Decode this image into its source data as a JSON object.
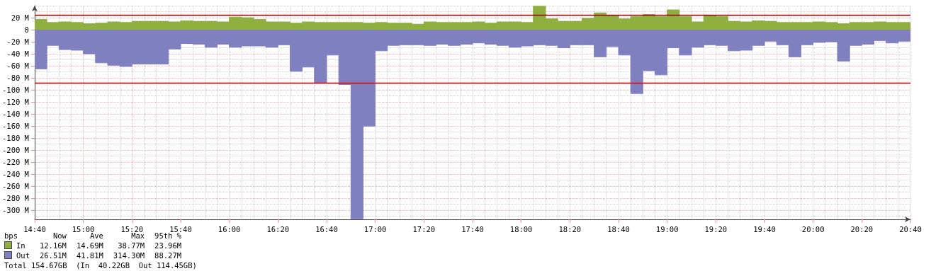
{
  "chart_data": {
    "type": "area",
    "x": [
      14.6667,
      14.75,
      14.75,
      14.8333,
      14.8333,
      14.9167,
      14.9167,
      15,
      15,
      15.0833,
      15.0833,
      15.1667,
      15.1667,
      15.25,
      15.25,
      15.3333,
      15.3333,
      15.4167,
      15.4167,
      15.5,
      15.5,
      15.5833,
      15.5833,
      15.6667,
      15.6667,
      15.75,
      15.75,
      15.8333,
      15.8333,
      15.9167,
      15.9167,
      16,
      16,
      16.0833,
      16.0833,
      16.1667,
      16.1667,
      16.25,
      16.25,
      16.3333,
      16.3333,
      16.4167,
      16.4167,
      16.5,
      16.5,
      16.5833,
      16.5833,
      16.6667,
      16.6667,
      16.75,
      16.75,
      16.8333,
      16.8333,
      16.9167,
      16.9167,
      17,
      17,
      17.0833,
      17.0833,
      17.1667,
      17.1667,
      17.25,
      17.25,
      17.3333,
      17.3333,
      17.4167,
      17.4167,
      17.5,
      17.5,
      17.5833,
      17.5833,
      17.6667,
      17.6667,
      17.75,
      17.75,
      17.8333,
      17.8333,
      17.9167,
      17.9167,
      18,
      18,
      18.0833,
      18.0833,
      18.1667,
      18.1667,
      18.25,
      18.25,
      18.3333,
      18.3333,
      18.4167,
      18.4167,
      18.5,
      18.5,
      18.5833,
      18.5833,
      18.6667,
      18.6667,
      18.75,
      18.75,
      18.8333,
      18.8333,
      18.9167,
      18.9167,
      19,
      19,
      19.0833,
      19.0833,
      19.1667,
      19.1667,
      19.25,
      19.25,
      19.3333,
      19.3333,
      19.4167,
      19.4167,
      19.5,
      19.5,
      19.5833,
      19.5833,
      19.6667,
      19.6667,
      19.75,
      19.75,
      19.8333,
      19.8333,
      19.9167,
      19.9167,
      20,
      20,
      20.0833,
      20.0833,
      20.1667,
      20.1667,
      20.25,
      20.25,
      20.3333,
      20.3333,
      20.4167,
      20.4167,
      20.5,
      20.5,
      20.5833,
      20.5833,
      20.6667
    ],
    "series": [
      {
        "name": "In",
        "color": "#8fb040",
        "values": [
          17,
          17,
          12,
          12,
          13,
          13,
          12,
          12,
          10,
          10,
          11,
          11,
          13,
          13,
          12,
          12,
          14,
          14,
          14,
          14,
          14,
          14,
          13,
          13,
          15,
          15,
          14,
          14,
          14,
          14,
          13,
          13,
          21,
          21,
          20,
          20,
          17,
          17,
          13,
          13,
          13,
          13,
          11,
          11,
          13,
          13,
          12,
          12,
          12,
          12,
          12,
          12,
          12,
          12,
          11,
          11,
          12,
          12,
          11,
          11,
          11,
          11,
          9,
          9,
          13,
          13,
          12,
          12,
          12,
          12,
          12,
          12,
          13,
          13,
          11,
          11,
          13,
          13,
          13,
          13,
          12,
          12,
          39,
          39,
          18,
          18,
          14,
          14,
          14,
          14,
          19,
          19,
          28,
          28,
          24,
          24,
          18,
          18,
          22,
          22,
          25,
          25,
          22,
          22,
          33,
          33,
          22,
          22,
          13,
          13,
          23,
          23,
          22,
          22,
          14,
          14,
          13,
          13,
          15,
          15,
          14,
          14,
          12,
          12,
          12,
          12,
          12,
          12,
          13,
          13,
          12,
          12,
          10,
          10,
          12,
          12,
          12,
          12,
          13,
          13,
          12,
          12,
          12,
          12
        ]
      },
      {
        "name": "Out",
        "color": "#8080c0",
        "values": [
          -65,
          -65,
          -26,
          -26,
          -33,
          -33,
          -34,
          -34,
          -40,
          -40,
          -55,
          -55,
          -59,
          -59,
          -61,
          -61,
          -57,
          -57,
          -57,
          -57,
          -57,
          -57,
          -32,
          -32,
          -23,
          -23,
          -24,
          -24,
          -29,
          -29,
          -24,
          -24,
          -29,
          -29,
          -27,
          -27,
          -27,
          -27,
          -29,
          -29,
          -25,
          -25,
          -69,
          -69,
          -62,
          -62,
          -88,
          -88,
          -42,
          -42,
          -91,
          -91,
          -314,
          -314,
          -160,
          -160,
          -35,
          -35,
          -26,
          -26,
          -25,
          -25,
          -25,
          -25,
          -26,
          -26,
          -24,
          -24,
          -26,
          -26,
          -24,
          -24,
          -22,
          -22,
          -24,
          -24,
          -26,
          -26,
          -29,
          -29,
          -27,
          -27,
          -25,
          -25,
          -26,
          -26,
          -30,
          -30,
          -25,
          -25,
          -25,
          -25,
          -45,
          -45,
          -28,
          -28,
          -42,
          -42,
          -106,
          -106,
          -68,
          -68,
          -75,
          -75,
          -30,
          -30,
          -42,
          -42,
          -29,
          -29,
          -25,
          -25,
          -26,
          -26,
          -35,
          -35,
          -34,
          -34,
          -26,
          -26,
          -19,
          -19,
          -25,
          -25,
          -45,
          -45,
          -25,
          -25,
          -21,
          -21,
          -20,
          -20,
          -52,
          -52,
          -26,
          -26,
          -24,
          -24,
          -18,
          -18,
          -22,
          -22,
          -19,
          -19
        ]
      }
    ],
    "xlim": [
      14.6667,
      20.6667
    ],
    "xticks": [
      {
        "value": 14.6667,
        "label": "14:40"
      },
      {
        "value": 15,
        "label": "15:00"
      },
      {
        "value": 15.3333,
        "label": "15:20"
      },
      {
        "value": 15.6667,
        "label": "15:40"
      },
      {
        "value": 16,
        "label": "16:00"
      },
      {
        "value": 16.3333,
        "label": "16:20"
      },
      {
        "value": 16.6667,
        "label": "16:40"
      },
      {
        "value": 17,
        "label": "17:00"
      },
      {
        "value": 17.3333,
        "label": "17:20"
      },
      {
        "value": 17.6667,
        "label": "17:40"
      },
      {
        "value": 18,
        "label": "18:00"
      },
      {
        "value": 18.3333,
        "label": "18:20"
      },
      {
        "value": 18.6667,
        "label": "18:40"
      },
      {
        "value": 19,
        "label": "19:00"
      },
      {
        "value": 19.3333,
        "label": "19:20"
      },
      {
        "value": 19.6667,
        "label": "19:40"
      },
      {
        "value": 20,
        "label": "20:00"
      },
      {
        "value": 20.3333,
        "label": "20:20"
      },
      {
        "value": 20.6667,
        "label": "20:40"
      }
    ],
    "ylim": [
      -315,
      40
    ],
    "yticks": [
      {
        "value": 20,
        "label": "20 M"
      },
      0,
      {
        "value": -20,
        "label": "-20 M"
      },
      {
        "value": -40,
        "label": "-40 M"
      },
      {
        "value": -60,
        "label": "-60 M"
      },
      {
        "value": -80,
        "label": "-80 M"
      },
      {
        "value": -100,
        "label": "-100 M"
      },
      {
        "value": -120,
        "label": "-120 M"
      },
      {
        "value": -140,
        "label": "-140 M"
      },
      {
        "value": -160,
        "label": "-160 M"
      },
      {
        "value": -180,
        "label": "-180 M"
      },
      {
        "value": -200,
        "label": "-200 M"
      },
      {
        "value": -220,
        "label": "-220 M"
      },
      {
        "value": -240,
        "label": "-240 M"
      },
      {
        "value": -260,
        "label": "-260 M"
      },
      {
        "value": -280,
        "label": "-280 M"
      },
      {
        "value": -300,
        "label": "-300 M"
      }
    ],
    "ref_lines": [
      {
        "axis": "y",
        "value": 23.96,
        "color": "#990000"
      },
      {
        "axis": "y",
        "value": -88.27,
        "color": "#dd0000"
      }
    ],
    "grid": true,
    "legend": "bottom",
    "annotations": [
      "bps",
      "Now",
      "Ave",
      "Max",
      "95th %",
      "12.16M",
      "14.69M",
      "38.77M",
      "23.96M",
      "26.51M",
      "41.81M",
      "314.30M",
      "88.27M",
      "Total 154.67GB  (In  40.22GB  Out 114.45GB)"
    ]
  }
}
